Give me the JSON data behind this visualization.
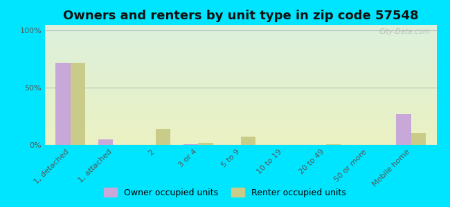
{
  "title": "Owners and renters by unit type in zip code 57548",
  "categories": [
    "1, detached",
    "1, attached",
    "2",
    "3 or 4",
    "5 to 9",
    "10 to 19",
    "20 to 49",
    "50 or more",
    "Mobile home"
  ],
  "owner_values": [
    72,
    5,
    0,
    0.5,
    0,
    0,
    0,
    0,
    27
  ],
  "renter_values": [
    72,
    0,
    14,
    2,
    7,
    0,
    0.5,
    0,
    10
  ],
  "owner_color": "#c8a8d8",
  "renter_color": "#c8cc88",
  "outer_bg_color": "#00e5ff",
  "yticks": [
    0,
    50,
    100
  ],
  "ytick_labels": [
    "0%",
    "50%",
    "100%"
  ],
  "ylim": [
    0,
    105
  ],
  "title_fontsize": 13,
  "legend_fontsize": 9,
  "tick_fontsize": 8,
  "watermark_text": "City-Data.com",
  "bar_width": 0.35
}
